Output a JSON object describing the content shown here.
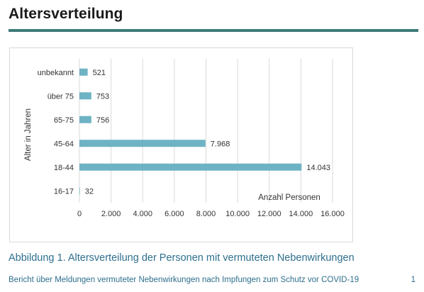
{
  "page": {
    "title": "Altersverteilung",
    "caption": "Abbildung 1. Altersverteilung der Personen mit vermuteten Nebenwirkungen",
    "footer_text": "Bericht über Meldungen vermuteter Nebenwirkungen nach Impfungen zum Schutz vor COVID-19",
    "page_number": "1"
  },
  "colors": {
    "bar": "#6db3c4",
    "grid": "#d9d9d9",
    "title_rule": "#3e7a79",
    "caption": "#2e6f8e"
  },
  "chart_data": {
    "type": "bar",
    "orientation": "horizontal",
    "title": "",
    "xlabel": "Anzahl Personen",
    "ylabel": "Alter in Jahren",
    "categories": [
      "unbekannt",
      "über 75",
      "65-75",
      "45-64",
      "18-44",
      "16-17"
    ],
    "values": [
      521,
      753,
      756,
      7968,
      14043,
      32
    ],
    "value_labels": [
      "521",
      "753",
      "756",
      "7.968",
      "14.043",
      "32"
    ],
    "xlim": [
      0,
      16000
    ],
    "xticks": [
      0,
      2000,
      4000,
      6000,
      8000,
      10000,
      12000,
      14000,
      16000
    ],
    "xtick_labels": [
      "0",
      "2.000",
      "4.000",
      "6.000",
      "8.000",
      "10.000",
      "12.000",
      "14.000",
      "16.000"
    ],
    "grid": "vertical",
    "legend": "none"
  }
}
